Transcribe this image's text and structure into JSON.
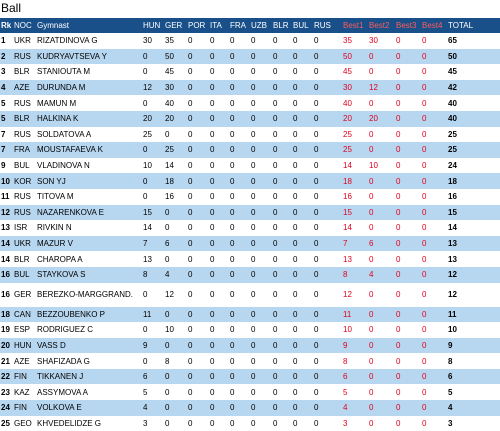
{
  "title": "Ball",
  "colors": {
    "header_bg": "#195089",
    "header_text": "#ffffff",
    "best_header_text": "#ff5b5b",
    "best_value_text": "#e0001e",
    "stripe": "#b7d7f1"
  },
  "table": {
    "headers": {
      "rk": "Rk",
      "noc": "NOC",
      "gymnast": "Gymnast",
      "hun": "HUN",
      "ger": "GER",
      "por": "POR",
      "ita": "ITA",
      "fra": "FRA",
      "uzb": "UZB",
      "blr": "BLR",
      "bul": "BUL",
      "rus": "RUS",
      "best1": "Best1",
      "best2": "Best2",
      "best3": "Best3",
      "best4": "Best4",
      "total": "TOTAL"
    },
    "rows": [
      {
        "rk": "1",
        "noc": "UKR",
        "gymnast": "RIZATDINOVA G",
        "hun": "30",
        "ger": "35",
        "por": "0",
        "ita": "0",
        "fra": "0",
        "uzb": "0",
        "blr": "0",
        "bul": "0",
        "rus": "0",
        "best1": "35",
        "best2": "30",
        "best3": "0",
        "best4": "0",
        "total": "65"
      },
      {
        "rk": "2",
        "noc": "RUS",
        "gymnast": "KUDRYAVTSEVA Y",
        "hun": "0",
        "ger": "50",
        "por": "0",
        "ita": "0",
        "fra": "0",
        "uzb": "0",
        "blr": "0",
        "bul": "0",
        "rus": "0",
        "best1": "50",
        "best2": "0",
        "best3": "0",
        "best4": "0",
        "total": "50"
      },
      {
        "rk": "3",
        "noc": "BLR",
        "gymnast": "STANIOUTA M",
        "hun": "0",
        "ger": "45",
        "por": "0",
        "ita": "0",
        "fra": "0",
        "uzb": "0",
        "blr": "0",
        "bul": "0",
        "rus": "0",
        "best1": "45",
        "best2": "0",
        "best3": "0",
        "best4": "0",
        "total": "45"
      },
      {
        "rk": "4",
        "noc": "AZE",
        "gymnast": "DURUNDA M",
        "hun": "12",
        "ger": "30",
        "por": "0",
        "ita": "0",
        "fra": "0",
        "uzb": "0",
        "blr": "0",
        "bul": "0",
        "rus": "0",
        "best1": "30",
        "best2": "12",
        "best3": "0",
        "best4": "0",
        "total": "42"
      },
      {
        "rk": "5",
        "noc": "RUS",
        "gymnast": "MAMUN M",
        "hun": "0",
        "ger": "40",
        "por": "0",
        "ita": "0",
        "fra": "0",
        "uzb": "0",
        "blr": "0",
        "bul": "0",
        "rus": "0",
        "best1": "40",
        "best2": "0",
        "best3": "0",
        "best4": "0",
        "total": "40"
      },
      {
        "rk": "5",
        "noc": "BLR",
        "gymnast": "HALKINA K",
        "hun": "20",
        "ger": "20",
        "por": "0",
        "ita": "0",
        "fra": "0",
        "uzb": "0",
        "blr": "0",
        "bul": "0",
        "rus": "0",
        "best1": "20",
        "best2": "20",
        "best3": "0",
        "best4": "0",
        "total": "40"
      },
      {
        "rk": "7",
        "noc": "RUS",
        "gymnast": "SOLDATOVA A",
        "hun": "25",
        "ger": "0",
        "por": "0",
        "ita": "0",
        "fra": "0",
        "uzb": "0",
        "blr": "0",
        "bul": "0",
        "rus": "0",
        "best1": "25",
        "best2": "0",
        "best3": "0",
        "best4": "0",
        "total": "25"
      },
      {
        "rk": "7",
        "noc": "FRA",
        "gymnast": "MOUSTAFAEVA K",
        "hun": "0",
        "ger": "25",
        "por": "0",
        "ita": "0",
        "fra": "0",
        "uzb": "0",
        "blr": "0",
        "bul": "0",
        "rus": "0",
        "best1": "25",
        "best2": "0",
        "best3": "0",
        "best4": "0",
        "total": "25"
      },
      {
        "rk": "9",
        "noc": "BUL",
        "gymnast": "VLADINOVA N",
        "hun": "10",
        "ger": "14",
        "por": "0",
        "ita": "0",
        "fra": "0",
        "uzb": "0",
        "blr": "0",
        "bul": "0",
        "rus": "0",
        "best1": "14",
        "best2": "10",
        "best3": "0",
        "best4": "0",
        "total": "24"
      },
      {
        "rk": "10",
        "noc": "KOR",
        "gymnast": "SON YJ",
        "hun": "0",
        "ger": "18",
        "por": "0",
        "ita": "0",
        "fra": "0",
        "uzb": "0",
        "blr": "0",
        "bul": "0",
        "rus": "0",
        "best1": "18",
        "best2": "0",
        "best3": "0",
        "best4": "0",
        "total": "18"
      },
      {
        "rk": "11",
        "noc": "RUS",
        "gymnast": "TITOVA M",
        "hun": "0",
        "ger": "16",
        "por": "0",
        "ita": "0",
        "fra": "0",
        "uzb": "0",
        "blr": "0",
        "bul": "0",
        "rus": "0",
        "best1": "16",
        "best2": "0",
        "best3": "0",
        "best4": "0",
        "total": "16"
      },
      {
        "rk": "12",
        "noc": "RUS",
        "gymnast": "NAZARENKOVA E",
        "hun": "15",
        "ger": "0",
        "por": "0",
        "ita": "0",
        "fra": "0",
        "uzb": "0",
        "blr": "0",
        "bul": "0",
        "rus": "0",
        "best1": "15",
        "best2": "0",
        "best3": "0",
        "best4": "0",
        "total": "15"
      },
      {
        "rk": "13",
        "noc": "ISR",
        "gymnast": "RIVKIN N",
        "hun": "14",
        "ger": "0",
        "por": "0",
        "ita": "0",
        "fra": "0",
        "uzb": "0",
        "blr": "0",
        "bul": "0",
        "rus": "0",
        "best1": "14",
        "best2": "0",
        "best3": "0",
        "best4": "0",
        "total": "14"
      },
      {
        "rk": "14",
        "noc": "UKR",
        "gymnast": "MAZUR V",
        "hun": "7",
        "ger": "6",
        "por": "0",
        "ita": "0",
        "fra": "0",
        "uzb": "0",
        "blr": "0",
        "bul": "0",
        "rus": "0",
        "best1": "7",
        "best2": "6",
        "best3": "0",
        "best4": "0",
        "total": "13"
      },
      {
        "rk": "14",
        "noc": "BLR",
        "gymnast": "CHAROPA A",
        "hun": "13",
        "ger": "0",
        "por": "0",
        "ita": "0",
        "fra": "0",
        "uzb": "0",
        "blr": "0",
        "bul": "0",
        "rus": "0",
        "best1": "13",
        "best2": "0",
        "best3": "0",
        "best4": "0",
        "total": "13"
      },
      {
        "rk": "16",
        "noc": "BUL",
        "gymnast": "STAYKOVA S",
        "hun": "8",
        "ger": "4",
        "por": "0",
        "ita": "0",
        "fra": "0",
        "uzb": "0",
        "blr": "0",
        "bul": "0",
        "rus": "0",
        "best1": "8",
        "best2": "4",
        "best3": "0",
        "best4": "0",
        "total": "12"
      },
      {
        "rk": "16",
        "noc": "GER",
        "gymnast": "BEREZKO-MARGGRAND.",
        "hun": "0",
        "ger": "12",
        "por": "0",
        "ita": "0",
        "fra": "0",
        "uzb": "0",
        "blr": "0",
        "bul": "0",
        "rus": "0",
        "best1": "12",
        "best2": "0",
        "best3": "0",
        "best4": "0",
        "total": "12"
      },
      {
        "rk": "18",
        "noc": "CAN",
        "gymnast": "BEZZOUBENKO P",
        "hun": "11",
        "ger": "0",
        "por": "0",
        "ita": "0",
        "fra": "0",
        "uzb": "0",
        "blr": "0",
        "bul": "0",
        "rus": "0",
        "best1": "11",
        "best2": "0",
        "best3": "0",
        "best4": "0",
        "total": "11"
      },
      {
        "rk": "19",
        "noc": "ESP",
        "gymnast": "RODRIGUEZ C",
        "hun": "0",
        "ger": "10",
        "por": "0",
        "ita": "0",
        "fra": "0",
        "uzb": "0",
        "blr": "0",
        "bul": "0",
        "rus": "0",
        "best1": "10",
        "best2": "0",
        "best3": "0",
        "best4": "0",
        "total": "10"
      },
      {
        "rk": "20",
        "noc": "HUN",
        "gymnast": "VASS D",
        "hun": "9",
        "ger": "0",
        "por": "0",
        "ita": "0",
        "fra": "0",
        "uzb": "0",
        "blr": "0",
        "bul": "0",
        "rus": "0",
        "best1": "9",
        "best2": "0",
        "best3": "0",
        "best4": "0",
        "total": "9"
      },
      {
        "rk": "21",
        "noc": "AZE",
        "gymnast": "SHAFIZADA G",
        "hun": "0",
        "ger": "8",
        "por": "0",
        "ita": "0",
        "fra": "0",
        "uzb": "0",
        "blr": "0",
        "bul": "0",
        "rus": "0",
        "best1": "8",
        "best2": "0",
        "best3": "0",
        "best4": "0",
        "total": "8"
      },
      {
        "rk": "22",
        "noc": "FIN",
        "gymnast": "TIKKANEN J",
        "hun": "6",
        "ger": "0",
        "por": "0",
        "ita": "0",
        "fra": "0",
        "uzb": "0",
        "blr": "0",
        "bul": "0",
        "rus": "0",
        "best1": "6",
        "best2": "0",
        "best3": "0",
        "best4": "0",
        "total": "6"
      },
      {
        "rk": "23",
        "noc": "KAZ",
        "gymnast": "ASSYMOVA A",
        "hun": "5",
        "ger": "0",
        "por": "0",
        "ita": "0",
        "fra": "0",
        "uzb": "0",
        "blr": "0",
        "bul": "0",
        "rus": "0",
        "best1": "5",
        "best2": "0",
        "best3": "0",
        "best4": "0",
        "total": "5"
      },
      {
        "rk": "24",
        "noc": "FIN",
        "gymnast": "VOLKOVA E",
        "hun": "4",
        "ger": "0",
        "por": "0",
        "ita": "0",
        "fra": "0",
        "uzb": "0",
        "blr": "0",
        "bul": "0",
        "rus": "0",
        "best1": "4",
        "best2": "0",
        "best3": "0",
        "best4": "0",
        "total": "4"
      },
      {
        "rk": "25",
        "noc": "GEO",
        "gymnast": "KHVEDELIDZE G",
        "hun": "3",
        "ger": "0",
        "por": "0",
        "ita": "0",
        "fra": "0",
        "uzb": "0",
        "blr": "0",
        "bul": "0",
        "rus": "0",
        "best1": "3",
        "best2": "0",
        "best3": "0",
        "best4": "0",
        "total": "3"
      }
    ]
  }
}
